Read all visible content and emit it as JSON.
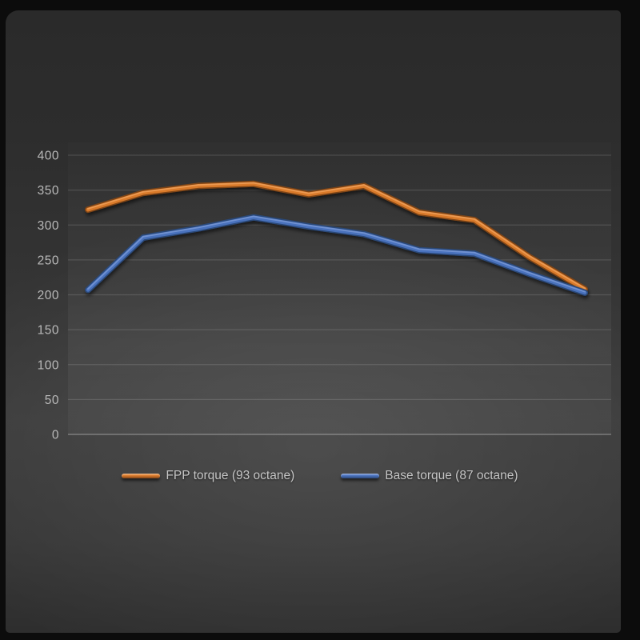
{
  "chart": {
    "title": "",
    "legend": [
      {
        "label": "FPP torque (93 octane)",
        "color": "#d97a2c"
      },
      {
        "label": "Base torque (87 octane)",
        "color": "#4a72bd"
      }
    ]
  },
  "chart_data": {
    "type": "line",
    "title": "",
    "xlabel": "",
    "ylabel": "",
    "x_axis_labels_visible": false,
    "x_index": [
      1,
      2,
      3,
      4,
      5,
      6,
      7,
      8,
      9,
      10
    ],
    "series": [
      {
        "name": "FPP torque (93 octane)",
        "color": "#d97a2c",
        "values": [
          322,
          346,
          356,
          359,
          344,
          356,
          318,
          307,
          254,
          208
        ]
      },
      {
        "name": "Base torque (87 octane)",
        "color": "#4a72bd",
        "values": [
          207,
          282,
          295,
          311,
          298,
          287,
          264,
          259,
          230,
          203
        ]
      }
    ],
    "ylim": [
      0,
      400
    ],
    "yticks": [
      0,
      50,
      100,
      150,
      200,
      250,
      300,
      350,
      400
    ],
    "grid": true,
    "legend_position": "bottom"
  },
  "colors": {
    "background_outer": "#0c0c0c",
    "panel_dark": "#2a2a2a",
    "panel_light": "#3c3c3c",
    "gridline": "#555555",
    "tick_text": "#b9b9b9",
    "legend_text": "#c6c6c6",
    "series_orange": "#d97a2c",
    "series_blue": "#4a72bd"
  }
}
